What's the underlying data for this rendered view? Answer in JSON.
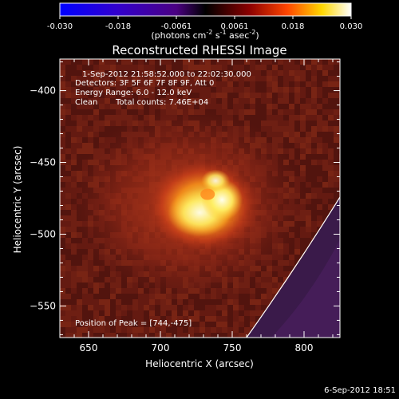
{
  "chart_data": {
    "type": "heatmap",
    "title": "Reconstructed RHESSI Image",
    "xlabel": "Heliocentric X (arcsec)",
    "ylabel": "Heliocentric Y (arcsec)",
    "xlim": [
      630,
      825
    ],
    "ylim": [
      -572,
      -378
    ],
    "xticks": [
      650,
      700,
      750,
      800
    ],
    "yticks": [
      -400,
      -450,
      -500,
      -550
    ],
    "colorbar": {
      "min": -0.03,
      "max": 0.03,
      "ticks": [
        "-0.030",
        "-0.018",
        "-0.0061",
        "0.0061",
        "0.018",
        "0.030"
      ],
      "unit_main": "(photons cm",
      "unit_exp1": "-2",
      "unit_mid": " s",
      "unit_exp2": "-1",
      "unit_end": " asec",
      "unit_exp3": "-2",
      "unit_close": ")"
    },
    "annotations": {
      "time_range": "1-Sep-2012 21:58:52.000 to 22:02:30.000",
      "detectors": "Detectors: 3F 5F 6F 7F 8F 9F, Att 0",
      "energy": "Energy Range: 6.0 - 12.0 keV",
      "clean_label": "Clean",
      "total_counts": "Total counts: 7.46E+04",
      "peak": "Position of Peak = [744,-475]"
    },
    "source": {
      "peak_x": 744,
      "peak_y": -475,
      "peak_value": 0.03
    },
    "limb": true
  },
  "footer": {
    "date": "6-Sep-2012 18:51"
  }
}
